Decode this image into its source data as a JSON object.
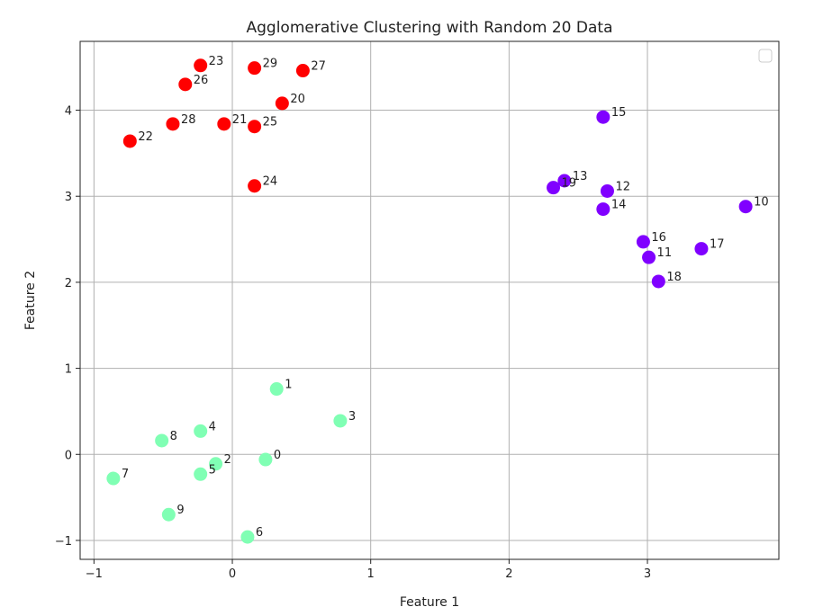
{
  "chart_data": {
    "type": "scatter",
    "title": "Agglomerative Clustering with Random 20 Data",
    "xlabel": "Feature 1",
    "ylabel": "Feature 2",
    "xlim": [
      -1.1,
      3.95
    ],
    "ylim": [
      -1.22,
      4.8
    ],
    "xticks": [
      -1,
      0,
      1,
      2,
      3
    ],
    "yticks": [
      -1,
      0,
      1,
      2,
      3,
      4
    ],
    "grid": true,
    "legend": {
      "placement": "top-right",
      "entries": []
    },
    "cluster_colors": {
      "red": "#ff0000",
      "purple": "#8000ff",
      "green": "#80ffb4"
    },
    "points": [
      {
        "label": "0",
        "x": 0.24,
        "y": -0.06,
        "cluster": "green"
      },
      {
        "label": "1",
        "x": 0.32,
        "y": 0.76,
        "cluster": "green"
      },
      {
        "label": "2",
        "x": -0.12,
        "y": -0.11,
        "cluster": "green"
      },
      {
        "label": "3",
        "x": 0.78,
        "y": 0.39,
        "cluster": "green"
      },
      {
        "label": "4",
        "x": -0.23,
        "y": 0.27,
        "cluster": "green"
      },
      {
        "label": "5",
        "x": -0.23,
        "y": -0.23,
        "cluster": "green"
      },
      {
        "label": "6",
        "x": 0.11,
        "y": -0.96,
        "cluster": "green"
      },
      {
        "label": "7",
        "x": -0.86,
        "y": -0.28,
        "cluster": "green"
      },
      {
        "label": "8",
        "x": -0.51,
        "y": 0.16,
        "cluster": "green"
      },
      {
        "label": "9",
        "x": -0.46,
        "y": -0.7,
        "cluster": "green"
      },
      {
        "label": "10",
        "x": 3.71,
        "y": 2.88,
        "cluster": "purple"
      },
      {
        "label": "11",
        "x": 3.01,
        "y": 2.29,
        "cluster": "purple"
      },
      {
        "label": "12",
        "x": 2.71,
        "y": 3.06,
        "cluster": "purple"
      },
      {
        "label": "13",
        "x": 2.4,
        "y": 3.18,
        "cluster": "purple"
      },
      {
        "label": "14",
        "x": 2.68,
        "y": 2.85,
        "cluster": "purple"
      },
      {
        "label": "15",
        "x": 2.68,
        "y": 3.92,
        "cluster": "purple"
      },
      {
        "label": "16",
        "x": 2.97,
        "y": 2.47,
        "cluster": "purple"
      },
      {
        "label": "17",
        "x": 3.39,
        "y": 2.39,
        "cluster": "purple"
      },
      {
        "label": "18",
        "x": 3.08,
        "y": 2.01,
        "cluster": "purple"
      },
      {
        "label": "19",
        "x": 2.32,
        "y": 3.1,
        "cluster": "purple"
      },
      {
        "label": "20",
        "x": 0.36,
        "y": 4.08,
        "cluster": "red"
      },
      {
        "label": "21",
        "x": -0.06,
        "y": 3.84,
        "cluster": "red"
      },
      {
        "label": "22",
        "x": -0.74,
        "y": 3.64,
        "cluster": "red"
      },
      {
        "label": "23",
        "x": -0.23,
        "y": 4.52,
        "cluster": "red"
      },
      {
        "label": "24",
        "x": 0.16,
        "y": 3.12,
        "cluster": "red"
      },
      {
        "label": "25",
        "x": 0.16,
        "y": 3.81,
        "cluster": "red"
      },
      {
        "label": "26",
        "x": -0.34,
        "y": 4.3,
        "cluster": "red"
      },
      {
        "label": "27",
        "x": 0.51,
        "y": 4.46,
        "cluster": "red"
      },
      {
        "label": "28",
        "x": -0.43,
        "y": 3.84,
        "cluster": "red"
      },
      {
        "label": "29",
        "x": 0.16,
        "y": 4.49,
        "cluster": "red"
      }
    ]
  }
}
